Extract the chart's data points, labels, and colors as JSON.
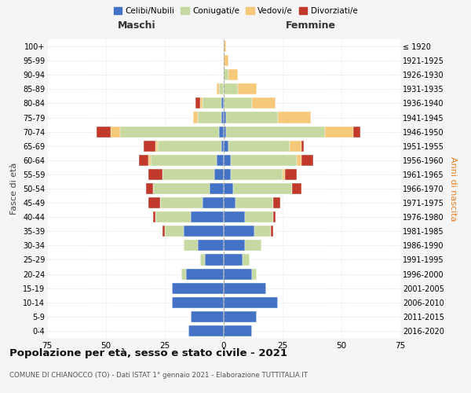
{
  "age_groups": [
    "0-4",
    "5-9",
    "10-14",
    "15-19",
    "20-24",
    "25-29",
    "30-34",
    "35-39",
    "40-44",
    "45-49",
    "50-54",
    "55-59",
    "60-64",
    "65-69",
    "70-74",
    "75-79",
    "80-84",
    "85-89",
    "90-94",
    "95-99",
    "100+"
  ],
  "birth_years": [
    "2016-2020",
    "2011-2015",
    "2006-2010",
    "2001-2005",
    "1996-2000",
    "1991-1995",
    "1986-1990",
    "1981-1985",
    "1976-1980",
    "1971-1975",
    "1966-1970",
    "1961-1965",
    "1956-1960",
    "1951-1955",
    "1946-1950",
    "1941-1945",
    "1936-1940",
    "1931-1935",
    "1926-1930",
    "1921-1925",
    "≤ 1920"
  ],
  "colors": {
    "celibi": "#4472C4",
    "coniugati": "#c5d9a0",
    "vedovi": "#f5c87a",
    "divorziati": "#c0392b"
  },
  "male": {
    "celibi": [
      15,
      14,
      22,
      22,
      16,
      8,
      11,
      17,
      14,
      9,
      6,
      4,
      3,
      1,
      2,
      1,
      1,
      0,
      0,
      0,
      0
    ],
    "coniugati": [
      0,
      0,
      0,
      0,
      2,
      2,
      6,
      8,
      15,
      18,
      24,
      22,
      28,
      27,
      42,
      10,
      8,
      2,
      0,
      0,
      0
    ],
    "vedovi": [
      0,
      0,
      0,
      0,
      0,
      0,
      0,
      0,
      0,
      0,
      0,
      0,
      1,
      1,
      4,
      2,
      1,
      1,
      0,
      0,
      0
    ],
    "divorziati": [
      0,
      0,
      0,
      0,
      0,
      0,
      0,
      1,
      1,
      5,
      3,
      6,
      4,
      5,
      6,
      0,
      2,
      0,
      0,
      0,
      0
    ]
  },
  "female": {
    "celibi": [
      12,
      14,
      23,
      18,
      12,
      8,
      9,
      13,
      9,
      5,
      4,
      3,
      3,
      2,
      1,
      1,
      0,
      0,
      0,
      0,
      0
    ],
    "coniugati": [
      0,
      0,
      0,
      0,
      2,
      3,
      7,
      7,
      12,
      16,
      25,
      22,
      28,
      26,
      42,
      22,
      12,
      6,
      2,
      0,
      0
    ],
    "vedovi": [
      0,
      0,
      0,
      0,
      0,
      0,
      0,
      0,
      0,
      0,
      0,
      1,
      2,
      5,
      12,
      14,
      10,
      8,
      4,
      2,
      1
    ],
    "divorziati": [
      0,
      0,
      0,
      0,
      0,
      0,
      0,
      1,
      1,
      3,
      4,
      5,
      5,
      1,
      3,
      0,
      0,
      0,
      0,
      0,
      0
    ]
  },
  "xlim": 75,
  "title": "Popolazione per età, sesso e stato civile - 2021",
  "subtitle": "COMUNE DI CHIANOCCO (TO) - Dati ISTAT 1° gennaio 2021 - Elaborazione TUTTITALIA.IT",
  "ylabel_left": "Fasce di età",
  "ylabel_right": "Anni di nascita",
  "xlabel_left": "Maschi",
  "xlabel_right": "Femmine",
  "legend_labels": [
    "Celibi/Nubili",
    "Coniugati/e",
    "Vedovi/e",
    "Divorziati/e"
  ],
  "bg_color": "#f5f5f5",
  "plot_bg": "#ffffff",
  "grid_color": "#cccccc",
  "bar_height": 0.78
}
